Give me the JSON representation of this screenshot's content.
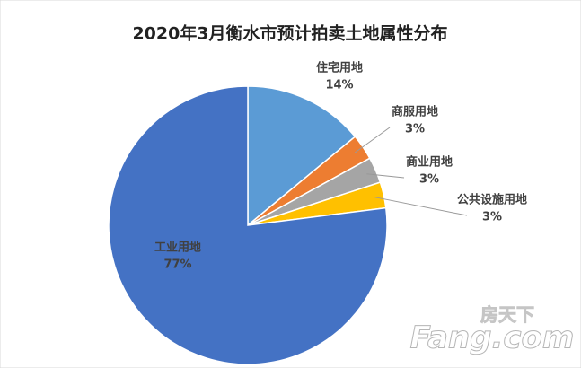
{
  "chart_data": {
    "type": "pie",
    "title": "2020年3月衡水市预计拍卖土地属性分布",
    "categories": [
      "住宅用地",
      "商服用地",
      "商业用地",
      "公共设施用地",
      "工业用地"
    ],
    "values": [
      14,
      3,
      3,
      3,
      77
    ],
    "value_labels": [
      "14%",
      "3%",
      "3%",
      "3%",
      "77%"
    ],
    "colors": [
      "#5b9bd5",
      "#ed7d31",
      "#a5a5a5",
      "#ffc000",
      "#4472c4"
    ]
  },
  "watermark": {
    "brand": "房天下",
    "site": "Fang.com"
  }
}
